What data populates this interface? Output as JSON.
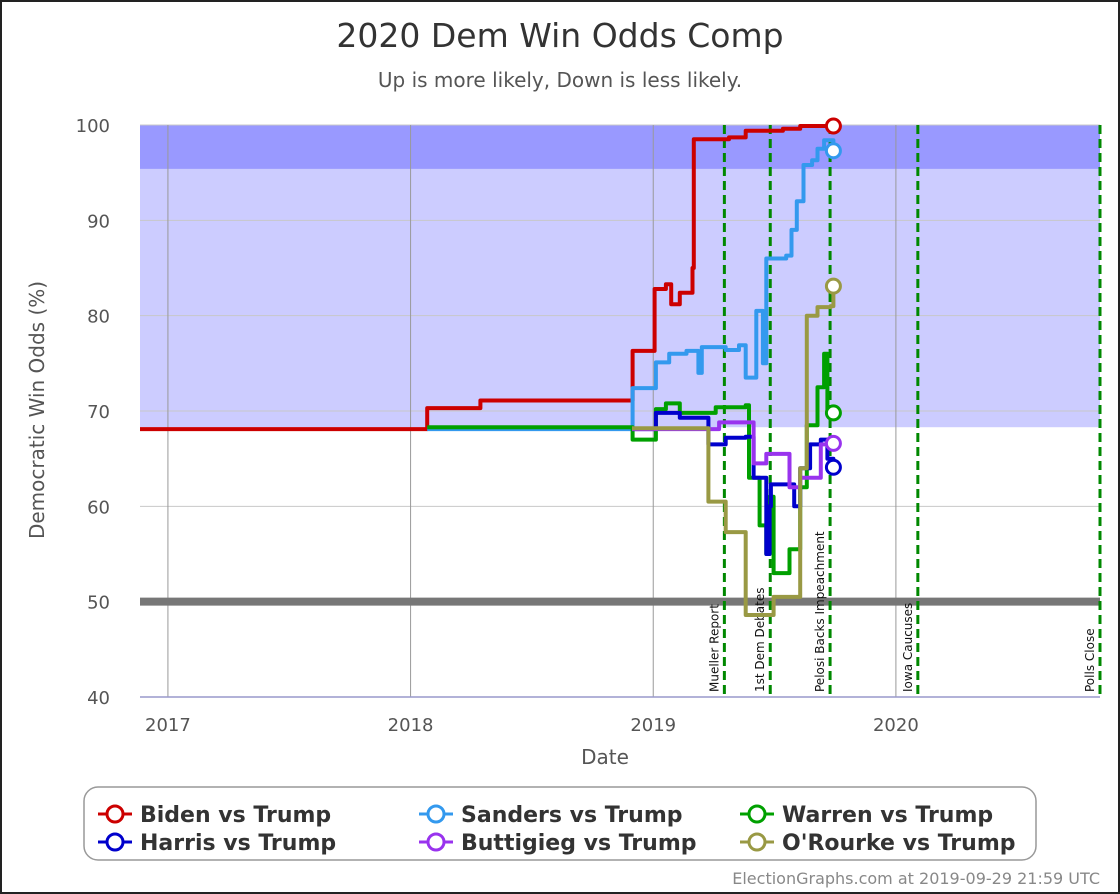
{
  "chart_data": {
    "type": "line",
    "title": "2020 Dem Win Odds Comp",
    "subtitle": "Up is more likely, Down is less likely.",
    "xlabel": "Date",
    "ylabel": "Democratic Win Odds (%)",
    "xlim": [
      "2016-11-20",
      "2020-11-03"
    ],
    "ylim": [
      40,
      100
    ],
    "x_ticks": [
      "2017",
      "2018",
      "2019",
      "2020"
    ],
    "y_ticks": [
      40,
      50,
      60,
      70,
      80,
      90,
      100
    ],
    "grid": true,
    "bands": [
      {
        "from": 68.3,
        "to": 100,
        "color": "#ccccff"
      },
      {
        "from": 95.4,
        "to": 100,
        "color": "#9999ff"
      }
    ],
    "reference_line": {
      "y": 50,
      "color": "#777777"
    },
    "events": [
      {
        "date": "2019-04-18",
        "label": "Mueller Report"
      },
      {
        "date": "2019-06-26",
        "label": "1st Dem Debates"
      },
      {
        "date": "2019-09-24",
        "label": "Pelosi Backs Impeachment"
      },
      {
        "date": "2020-02-03",
        "label": "Iowa Caucuses"
      },
      {
        "date": "2020-11-03",
        "label": "Polls Close"
      }
    ],
    "legend_position": "bottom",
    "series": [
      {
        "name": "Biden vs Trump",
        "color": "#cc0000",
        "points": [
          [
            "2016-11-20",
            68.1
          ],
          [
            "2018-01-25",
            68.1
          ],
          [
            "2018-01-26",
            70.3
          ],
          [
            "2018-04-15",
            70.3
          ],
          [
            "2018-04-16",
            71.1
          ],
          [
            "2018-11-30",
            71.1
          ],
          [
            "2018-12-01",
            76.3
          ],
          [
            "2019-01-02",
            76.3
          ],
          [
            "2019-01-03",
            82.8
          ],
          [
            "2019-01-20",
            83.3
          ],
          [
            "2019-01-28",
            81.2
          ],
          [
            "2019-02-10",
            82.4
          ],
          [
            "2019-02-28",
            82.4
          ],
          [
            "2019-03-01",
            85
          ],
          [
            "2019-03-03",
            98.5
          ],
          [
            "2019-04-25",
            98.7
          ],
          [
            "2019-05-20",
            99.4
          ],
          [
            "2019-07-15",
            99.6
          ],
          [
            "2019-08-10",
            99.9
          ],
          [
            "2019-09-29",
            99.9
          ]
        ]
      },
      {
        "name": "Sanders vs Trump",
        "color": "#3399ee",
        "points": [
          [
            "2018-01-26",
            68.1
          ],
          [
            "2018-11-30",
            68.1
          ],
          [
            "2018-12-01",
            72.4
          ],
          [
            "2019-01-05",
            75.1
          ],
          [
            "2019-01-25",
            76
          ],
          [
            "2019-02-20",
            76.3
          ],
          [
            "2019-03-10",
            74
          ],
          [
            "2019-03-15",
            76.7
          ],
          [
            "2019-04-20",
            76.4
          ],
          [
            "2019-05-10",
            76.9
          ],
          [
            "2019-05-20",
            73.5
          ],
          [
            "2019-06-05",
            80.5
          ],
          [
            "2019-06-15",
            75
          ],
          [
            "2019-06-20",
            86
          ],
          [
            "2019-07-20",
            86.3
          ],
          [
            "2019-07-28",
            89
          ],
          [
            "2019-08-05",
            92
          ],
          [
            "2019-08-15",
            95.8
          ],
          [
            "2019-08-28",
            96.3
          ],
          [
            "2019-09-05",
            97.5
          ],
          [
            "2019-09-15",
            98.4
          ],
          [
            "2019-09-29",
            97.3
          ]
        ]
      },
      {
        "name": "Warren vs Trump",
        "color": "#00a000",
        "points": [
          [
            "2018-01-26",
            68.3
          ],
          [
            "2018-11-30",
            68.3
          ],
          [
            "2018-12-01",
            67
          ],
          [
            "2019-01-02",
            67
          ],
          [
            "2019-01-05",
            70.2
          ],
          [
            "2019-01-20",
            70.8
          ],
          [
            "2019-02-10",
            69.8
          ],
          [
            "2019-04-05",
            70.4
          ],
          [
            "2019-05-20",
            70.6
          ],
          [
            "2019-05-25",
            63
          ],
          [
            "2019-06-10",
            58
          ],
          [
            "2019-06-20",
            55
          ],
          [
            "2019-06-25",
            61
          ],
          [
            "2019-07-01",
            53
          ],
          [
            "2019-07-20",
            53
          ],
          [
            "2019-07-25",
            55.5
          ],
          [
            "2019-08-10",
            62
          ],
          [
            "2019-08-20",
            68.5
          ],
          [
            "2019-09-05",
            72.5
          ],
          [
            "2019-09-15",
            76
          ],
          [
            "2019-09-20",
            70
          ],
          [
            "2019-09-29",
            69.8
          ]
        ]
      },
      {
        "name": "Harris vs Trump",
        "color": "#0000cc",
        "points": [
          [
            "2018-11-30",
            68.1
          ],
          [
            "2019-01-02",
            68.1
          ],
          [
            "2019-01-05",
            69.8
          ],
          [
            "2019-02-10",
            69.3
          ],
          [
            "2019-03-20",
            69.3
          ],
          [
            "2019-03-25",
            66.5
          ],
          [
            "2019-04-20",
            67.2
          ],
          [
            "2019-05-20",
            67.3
          ],
          [
            "2019-06-01",
            63
          ],
          [
            "2019-06-20",
            55
          ],
          [
            "2019-06-25",
            60
          ],
          [
            "2019-06-27",
            62.3
          ],
          [
            "2019-07-25",
            62.3
          ],
          [
            "2019-08-01",
            60
          ],
          [
            "2019-08-10",
            64
          ],
          [
            "2019-08-25",
            66.5
          ],
          [
            "2019-09-10",
            67
          ],
          [
            "2019-09-20",
            65
          ],
          [
            "2019-09-29",
            64.1
          ]
        ]
      },
      {
        "name": "Buttigieg vs Trump",
        "color": "#9933ee",
        "points": [
          [
            "2018-11-30",
            68.1
          ],
          [
            "2019-03-25",
            68.1
          ],
          [
            "2019-04-10",
            68.8
          ],
          [
            "2019-05-20",
            68.8
          ],
          [
            "2019-06-01",
            64.5
          ],
          [
            "2019-06-20",
            65.5
          ],
          [
            "2019-07-20",
            65.5
          ],
          [
            "2019-07-25",
            62
          ],
          [
            "2019-08-10",
            63
          ],
          [
            "2019-09-10",
            66.5
          ],
          [
            "2019-09-29",
            66.6
          ]
        ]
      },
      {
        "name": "O'Rourke vs Trump",
        "color": "#999944",
        "points": [
          [
            "2018-11-30",
            68.2
          ],
          [
            "2019-03-01",
            68.2
          ],
          [
            "2019-03-25",
            60.5
          ],
          [
            "2019-04-15",
            60.5
          ],
          [
            "2019-04-20",
            57.3
          ],
          [
            "2019-05-10",
            57.3
          ],
          [
            "2019-05-20",
            48.6
          ],
          [
            "2019-06-20",
            48.6
          ],
          [
            "2019-07-01",
            50.5
          ],
          [
            "2019-08-05",
            50.5
          ],
          [
            "2019-08-10",
            64
          ],
          [
            "2019-08-20",
            80
          ],
          [
            "2019-09-05",
            80.9
          ],
          [
            "2019-09-25",
            81
          ],
          [
            "2019-09-29",
            83.1
          ]
        ]
      }
    ]
  },
  "credit": "ElectionGraphs.com at 2019-09-29 21:59 UTC"
}
